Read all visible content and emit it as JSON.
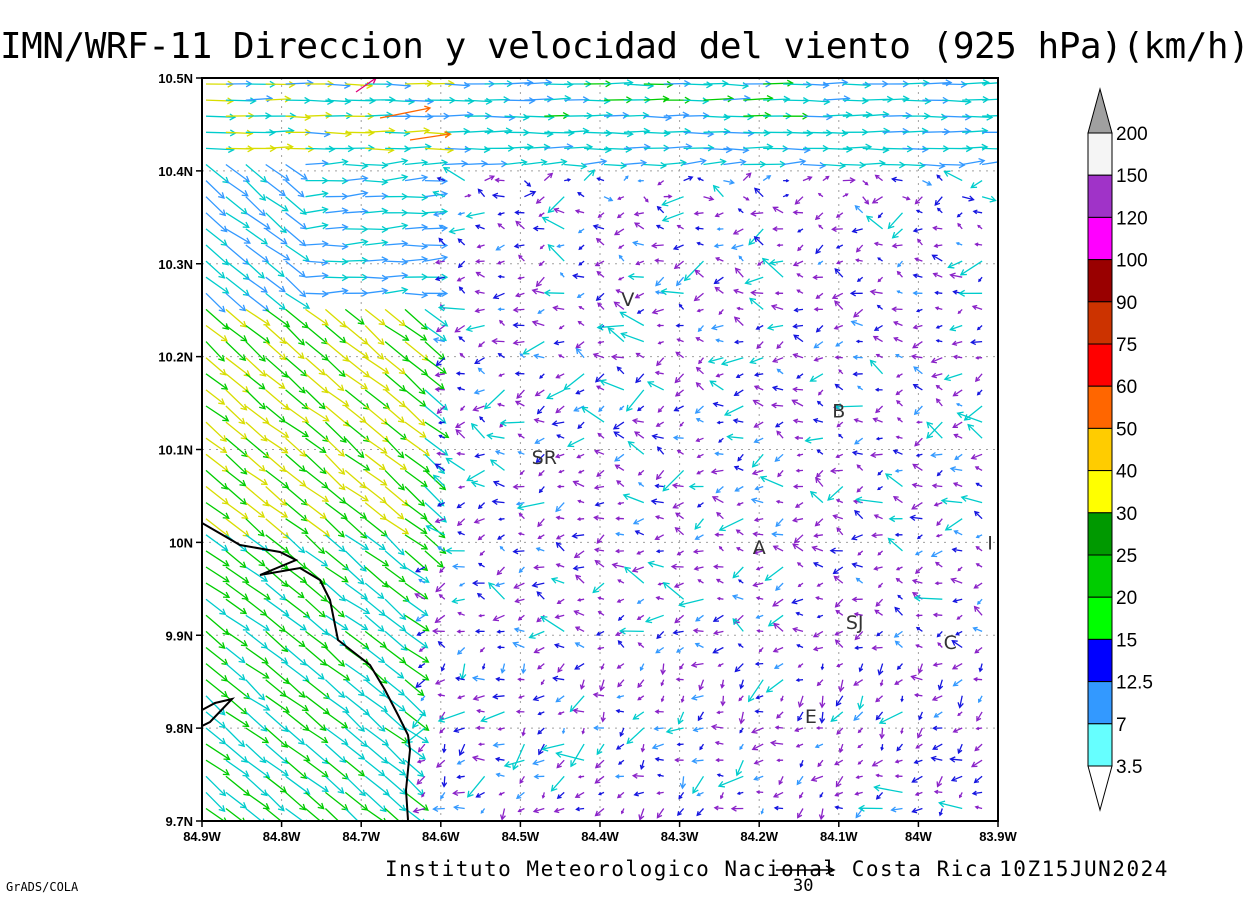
{
  "title": "IMN/WRF-11 Direccion y velocidad del viento (925 hPa)(km/h)",
  "footer": {
    "credit": "Instituto Meteorologico Nacional Costa Rica",
    "date": "10Z15JUN2024",
    "software": "GrADS/COLA",
    "reference_vector_label": "30"
  },
  "map": {
    "lon_ticks": [
      "84.9W",
      "84.8W",
      "84.7W",
      "84.6W",
      "84.5W",
      "84.4W",
      "84.3W",
      "84.2W",
      "84.1W",
      "84W",
      "83.9W"
    ],
    "lat_ticks": [
      "10.5N",
      "10.4N",
      "10.3N",
      "10.2N",
      "10.1N",
      "10N",
      "9.9N",
      "9.8N",
      "9.7N"
    ],
    "lon_range": [
      -84.9,
      -83.9
    ],
    "lat_range": [
      9.7,
      10.5
    ],
    "grid": "dotted",
    "places": [
      {
        "label": "V",
        "lon": -84.365,
        "lat": 10.262
      },
      {
        "label": "SR",
        "lon": -84.47,
        "lat": 10.092
      },
      {
        "label": "B",
        "lon": -84.1,
        "lat": 10.142
      },
      {
        "label": "A",
        "lon": -84.2,
        "lat": 9.995
      },
      {
        "label": "SJ",
        "lon": -84.08,
        "lat": 9.914
      },
      {
        "label": "C",
        "lon": -83.96,
        "lat": 9.893
      },
      {
        "label": "E",
        "lon": -84.135,
        "lat": 9.813
      },
      {
        "label": "I",
        "lon": -83.91,
        "lat": 10.0
      }
    ]
  },
  "colorbar": {
    "labels": [
      "200",
      "150",
      "120",
      "100",
      "90",
      "75",
      "60",
      "50",
      "40",
      "30",
      "25",
      "20",
      "15",
      "12.5",
      "7",
      "3.5"
    ],
    "colors": [
      "#a0a0a0",
      "#f5f5f5",
      "#a033c8",
      "#ff00ff",
      "#990000",
      "#cc3300",
      "#ff0000",
      "#ff6600",
      "#ffcc00",
      "#ffff00",
      "#009900",
      "#00cc00",
      "#00ff00",
      "#0000ff",
      "#3399ff",
      "#66ffff",
      "#ffffff"
    ]
  },
  "colors": {
    "arrow_palette": {
      "cyan": "#00cccc",
      "lightblue": "#3399ff",
      "blue": "#1515e0",
      "purple": "#8a22c8",
      "green": "#00cc00",
      "dkgreen": "#00a000",
      "yellow": "#d8dd00",
      "orange": "#ff6600",
      "magenta": "#e0007a"
    },
    "coastline": "#000000",
    "grid": "#a0a0a0"
  }
}
